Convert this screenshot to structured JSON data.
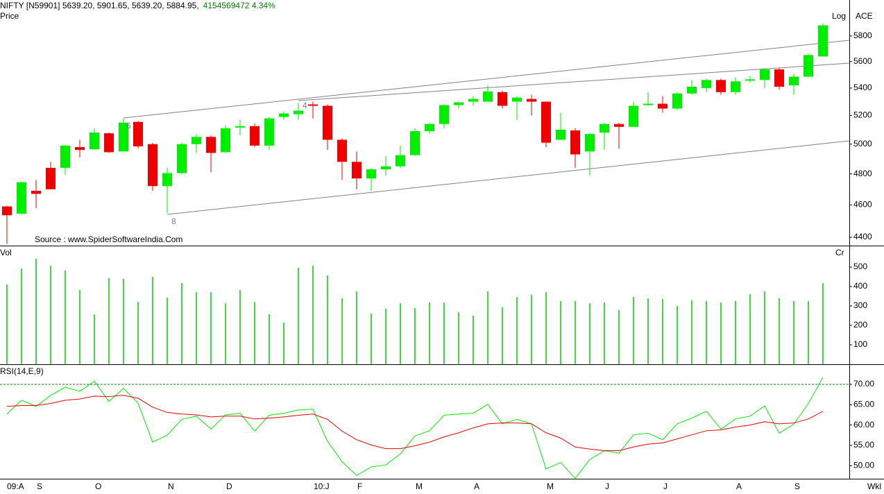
{
  "chart_data": [
    {
      "type": "candlestick",
      "title": "NIFTY [N59901] 5639.20, 5901.65, 5639.20, 5884.95,",
      "subtitle": "4154569472  4.34%",
      "ylabel": "Price",
      "scale_label": "Log",
      "indicator_label": "ACE",
      "source": "Source : www.SpiderSoftwareIndia.Com",
      "annotations": [
        "6",
        "8",
        "4"
      ],
      "log_scale": true,
      "up_color": "#00ee00",
      "down_color": "#ee0000",
      "ylim": [
        4350,
        5990
      ],
      "yticks": [
        4400,
        4600,
        4800,
        5000,
        5200,
        5400,
        5600,
        5800
      ],
      "open": [
        4590,
        4545,
        4690,
        4840,
        4840,
        4980,
        4965,
        5075,
        4950,
        5155,
        5000,
        4720,
        4805,
        5000,
        5050,
        4945,
        5115,
        5125,
        4990,
        5190,
        5210,
        5280,
        5270,
        5030,
        4880,
        4770,
        4830,
        4850,
        4925,
        5090,
        5140,
        5275,
        5300,
        5300,
        5370,
        5300,
        5320,
        5300,
        5030,
        5095,
        4950,
        5080,
        5140,
        5120,
        5275,
        5285,
        5250,
        5360,
        5400,
        5460,
        5370,
        5455,
        5460,
        5540,
        5420,
        5485,
        5639.2
      ],
      "high": [
        4595,
        4750,
        4760,
        4880,
        4995,
        5030,
        5110,
        5080,
        5180,
        5160,
        5010,
        4840,
        5010,
        5070,
        5060,
        5130,
        5170,
        5145,
        5190,
        5230,
        5290,
        5300,
        5280,
        5040,
        4950,
        4840,
        4920,
        4990,
        5110,
        5150,
        5280,
        5300,
        5340,
        5420,
        5380,
        5340,
        5350,
        5300,
        5220,
        5110,
        5080,
        5150,
        5150,
        5300,
        5370,
        5340,
        5370,
        5460,
        5470,
        5470,
        5480,
        5490,
        5550,
        5550,
        5510,
        5660,
        5901.65
      ],
      "low": [
        4360,
        4540,
        4580,
        4700,
        4795,
        4910,
        4960,
        4940,
        4950,
        4970,
        4690,
        4550,
        4800,
        4940,
        4810,
        4940,
        5060,
        4980,
        4960,
        5170,
        5170,
        5180,
        4960,
        4760,
        4700,
        4690,
        4790,
        4840,
        4920,
        5070,
        5110,
        5250,
        5270,
        5300,
        5250,
        5170,
        5200,
        4980,
        5030,
        4840,
        4790,
        4960,
        4970,
        5120,
        5270,
        5220,
        5240,
        5350,
        5370,
        5350,
        5350,
        5440,
        5400,
        5390,
        5350,
        5480,
        5639.2
      ],
      "close": [
        4535,
        4745,
        4670,
        4700,
        4990,
        4960,
        5080,
        4945,
        5150,
        4985,
        4720,
        4805,
        5000,
        5050,
        4940,
        5110,
        5125,
        4990,
        5180,
        5215,
        5235,
        5270,
        5030,
        4880,
        4770,
        4830,
        4850,
        4925,
        5090,
        5140,
        5275,
        5295,
        5320,
        5375,
        5270,
        5330,
        5300,
        5010,
        5100,
        4930,
        5070,
        5140,
        5120,
        5270,
        5285,
        5250,
        5360,
        5410,
        5460,
        5370,
        5450,
        5465,
        5540,
        5410,
        5485,
        5650,
        5884.95
      ]
    },
    {
      "type": "bar",
      "ylabel": "Vol",
      "unit_label": "Cr",
      "color": "#00cc00",
      "ylim": [
        0,
        607
      ],
      "yticks": [
        100,
        200,
        300,
        400,
        500
      ],
      "values": [
        411,
        493,
        543,
        507,
        482,
        382,
        257,
        443,
        439,
        321,
        450,
        343,
        418,
        371,
        371,
        314,
        382,
        321,
        257,
        214,
        496,
        507,
        457,
        339,
        375,
        261,
        286,
        314,
        289,
        318,
        318,
        268,
        250,
        375,
        293,
        346,
        357,
        371,
        325,
        325,
        314,
        318,
        279,
        346,
        339,
        336,
        300,
        329,
        325,
        318,
        325,
        361,
        375,
        339,
        325,
        325,
        418
      ]
    },
    {
      "type": "line",
      "ylabel": "RSI(14,E,9)",
      "xlabel": "Wkl",
      "ylim": [
        46.8,
        74.6
      ],
      "yticks": [
        {
          "value": 50,
          "label": "50.00"
        },
        {
          "value": 55,
          "label": "55.00"
        },
        {
          "value": 60,
          "label": "60.00"
        },
        {
          "value": 65,
          "label": "65.00"
        },
        {
          "value": 70,
          "label": "70.00"
        }
      ],
      "reference_line": 70,
      "reference_color": "#008000",
      "categories": [
        "09:A",
        null,
        "S",
        null,
        null,
        null,
        "O",
        null,
        null,
        null,
        null,
        "N",
        null,
        null,
        null,
        "D",
        null,
        null,
        null,
        null,
        null,
        "10:J",
        null,
        null,
        "F",
        null,
        null,
        null,
        "M",
        null,
        null,
        null,
        "A",
        null,
        null,
        null,
        null,
        "M",
        null,
        null,
        null,
        "J",
        null,
        null,
        null,
        "J",
        null,
        null,
        null,
        null,
        "A",
        null,
        null,
        null,
        "S",
        null,
        null
      ],
      "series": [
        {
          "color": "#00ee00",
          "values": [
            62.7,
            66.1,
            64.6,
            67.3,
            69.3,
            68.3,
            70.8,
            65.8,
            69.0,
            65.4,
            55.8,
            57.5,
            61.4,
            62.2,
            59.0,
            62.5,
            62.9,
            58.5,
            62.4,
            62.9,
            63.7,
            63.9,
            56.0,
            51.0,
            47.6,
            49.7,
            50.2,
            52.9,
            57.3,
            58.6,
            62.4,
            62.7,
            62.9,
            65.1,
            60.3,
            61.4,
            60.3,
            49.2,
            50.8,
            46.9,
            51.5,
            53.7,
            53.1,
            57.6,
            58.0,
            56.4,
            60.3,
            61.7,
            63.4,
            59.0,
            61.5,
            62.2,
            64.7,
            58.0,
            60.2,
            65.3,
            71.7
          ]
        },
        {
          "color": "#ee0000",
          "values": [
            64.6,
            64.8,
            64.8,
            65.3,
            66.1,
            66.4,
            67.1,
            67.0,
            67.3,
            66.6,
            64.4,
            63.1,
            62.7,
            62.5,
            62.0,
            62.2,
            62.2,
            61.5,
            61.7,
            62.0,
            62.4,
            62.7,
            61.4,
            58.5,
            56.4,
            55.1,
            54.2,
            54.2,
            54.9,
            55.8,
            57.1,
            58.1,
            59.3,
            60.3,
            60.5,
            60.5,
            60.3,
            58.1,
            56.8,
            54.6,
            54.1,
            53.7,
            53.7,
            54.6,
            55.3,
            55.6,
            56.6,
            57.6,
            58.6,
            58.8,
            59.5,
            60.0,
            60.8,
            60.3,
            60.5,
            61.5,
            63.4
          ]
        }
      ]
    }
  ]
}
